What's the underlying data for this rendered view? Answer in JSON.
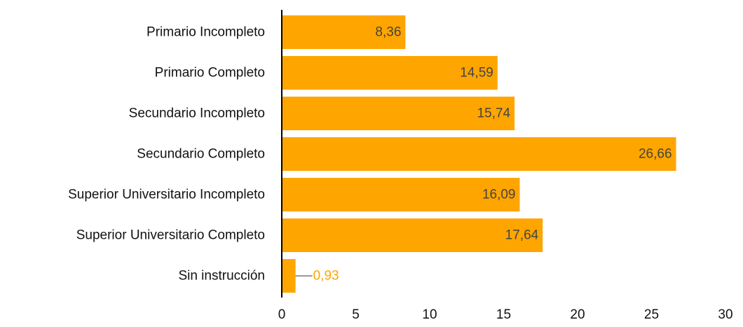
{
  "chart_data": {
    "type": "bar",
    "orientation": "horizontal",
    "categories": [
      "Primario Incompleto",
      "Primario Completo",
      "Secundario Incompleto",
      "Secundario Completo",
      "Superior Universitario Incompleto",
      "Superior Universitario Completo",
      "Sin instrucción"
    ],
    "values": [
      8.36,
      14.59,
      15.74,
      26.66,
      16.09,
      17.64,
      0.93
    ],
    "value_labels": [
      "8,36",
      "14,59",
      "15,74",
      "26,66",
      "16,09",
      "17,64",
      "0,93"
    ],
    "label_position": [
      "inside",
      "inside",
      "inside",
      "inside",
      "inside",
      "inside",
      "outside"
    ],
    "xlim": [
      0,
      30
    ],
    "xticks": [
      0,
      5,
      10,
      15,
      20,
      25,
      30
    ],
    "xtick_labels": [
      "0",
      "5",
      "10",
      "15",
      "20",
      "25",
      "30"
    ],
    "title": "",
    "xlabel": "",
    "ylabel": "",
    "grid": false,
    "legend": "none",
    "colors": {
      "bar": "#FFA500",
      "label_inside": "#444444",
      "label_outside": "#FFA500",
      "category_text": "#111111",
      "axis": "#000000",
      "leader_line": "#999999"
    }
  }
}
